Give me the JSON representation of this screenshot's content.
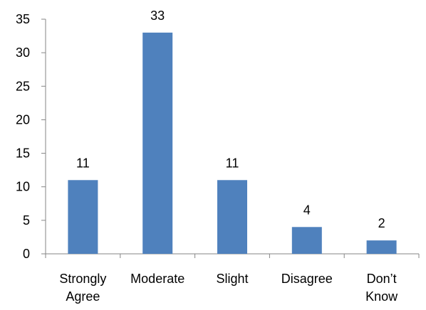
{
  "chart_data": {
    "type": "bar",
    "categories": [
      [
        "Strongly",
        "Agree"
      ],
      [
        "Moderate"
      ],
      [
        "Slight"
      ],
      [
        "Disagree"
      ],
      [
        "Don’t",
        "Know"
      ]
    ],
    "values": [
      11,
      33,
      11,
      4,
      2
    ],
    "data_labels": [
      "11",
      "33",
      "11",
      "4",
      "2"
    ],
    "yticks": [
      "0",
      "5",
      "10",
      "15",
      "20",
      "25",
      "30",
      "35"
    ],
    "ylim": [
      0,
      35
    ],
    "grid": false,
    "legend": "none",
    "bar_color": "#4f81bd",
    "axis_color": "#868686"
  }
}
